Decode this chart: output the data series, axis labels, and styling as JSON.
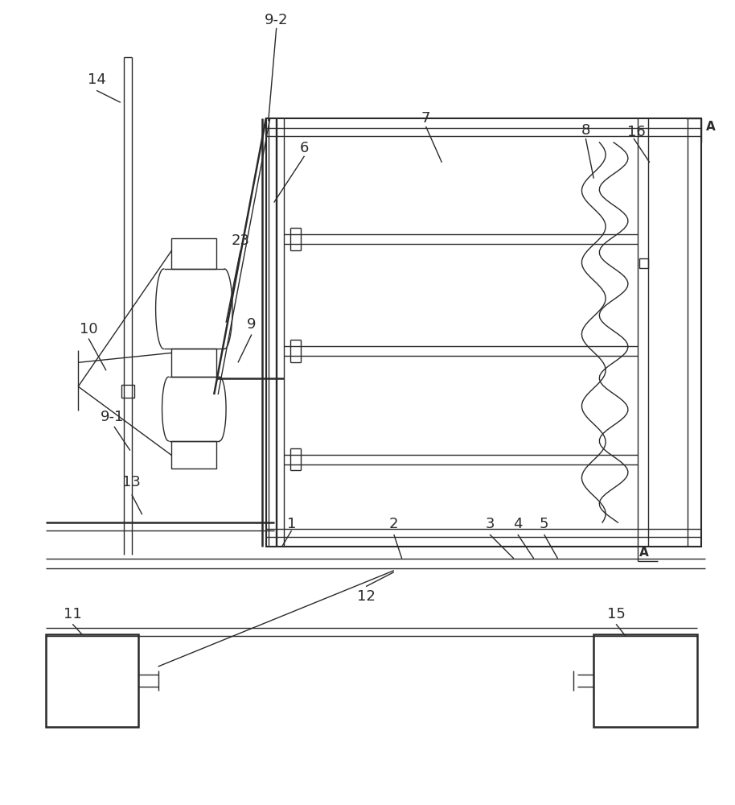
{
  "bg_color": "#ffffff",
  "line_color": "#2a2a2a",
  "lw": 1.0,
  "lw_thick": 1.8,
  "fig_w": 9.14,
  "fig_h": 10.0
}
